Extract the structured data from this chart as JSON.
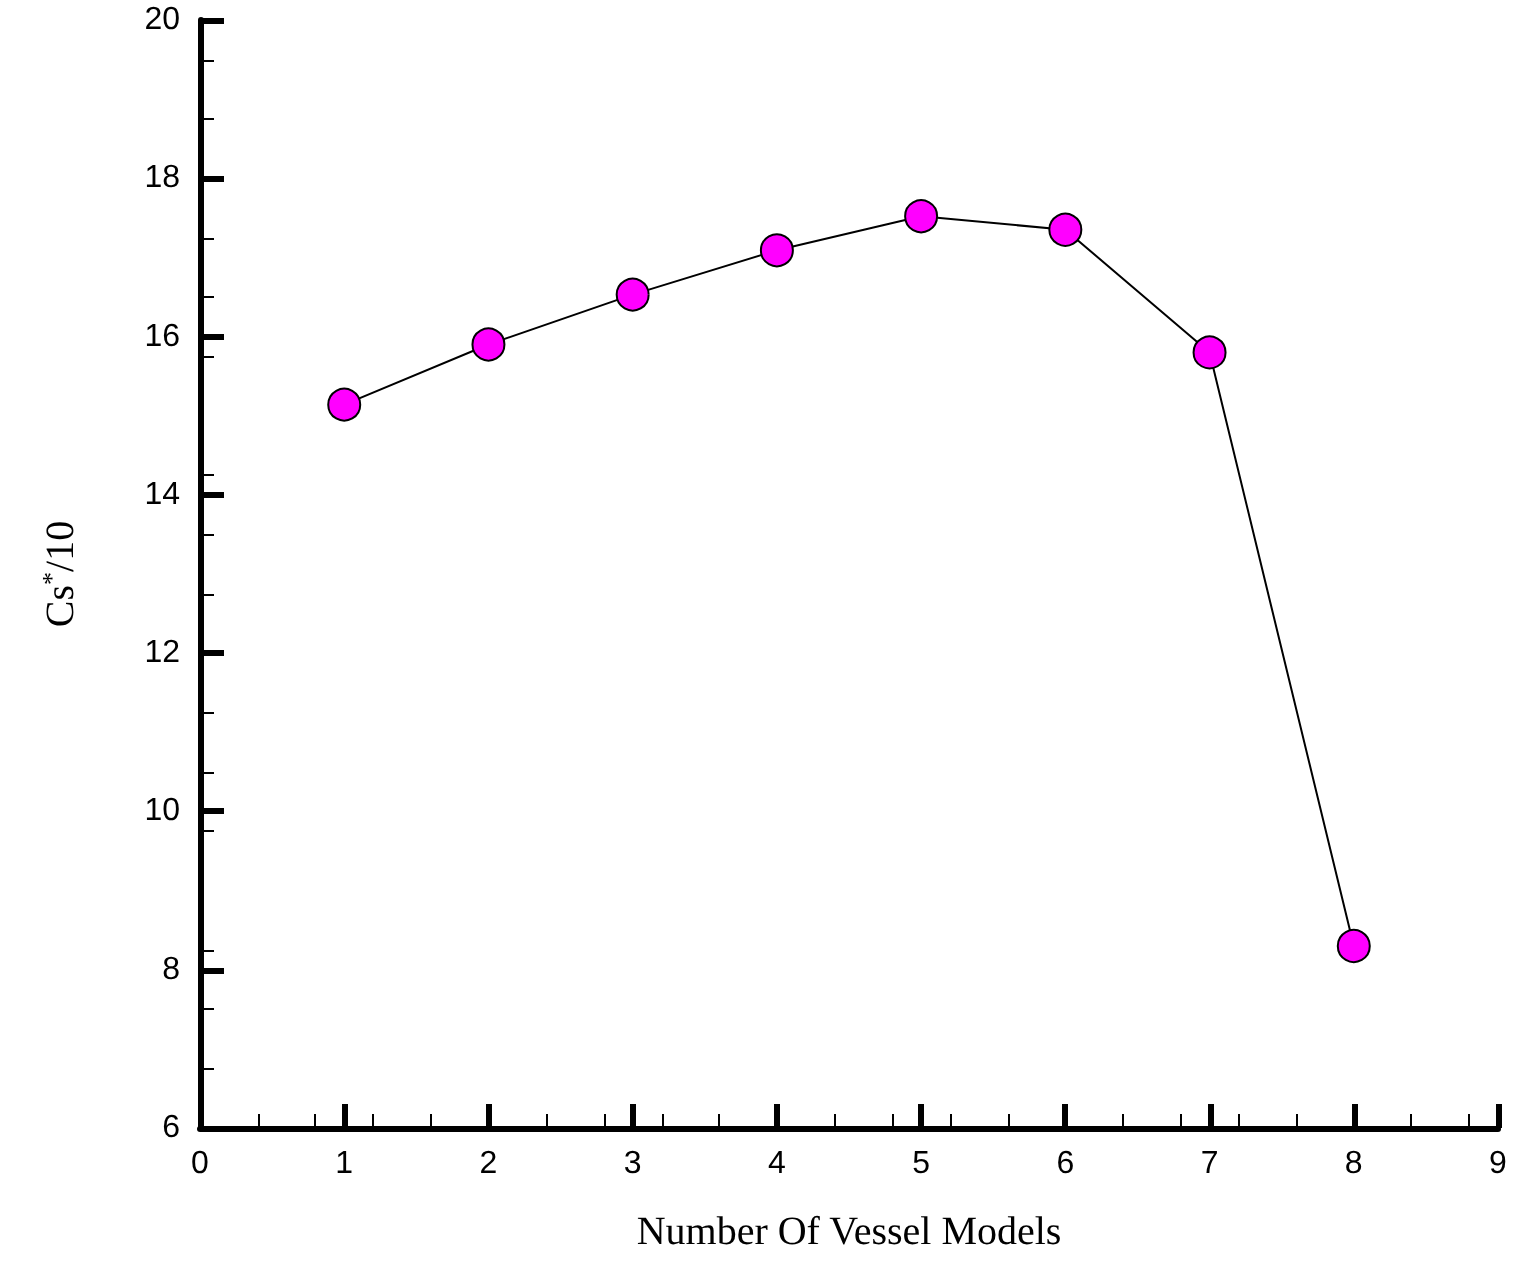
{
  "chart_data": {
    "type": "line",
    "xlabel": "Number Of Vessel Models",
    "ylabel": "Cs$^{*}$/10",
    "x": [
      1,
      2,
      3,
      4,
      5,
      6,
      7,
      8
    ],
    "series": [
      {
        "color": "#ff00ff",
        "values": [
          15.14,
          15.9,
          16.53,
          17.09,
          17.52,
          17.35,
          15.8,
          8.3
        ]
      }
    ],
    "xlim": [
      0,
      9
    ],
    "xticks": [
      0,
      1,
      2,
      3,
      4,
      5,
      6,
      7,
      8,
      9
    ],
    "ylim": [
      6,
      20
    ],
    "yticks": [
      6,
      8,
      10,
      12,
      14,
      16,
      18,
      20
    ],
    "grid": false,
    "marker": "circle",
    "line_style": "solid"
  }
}
